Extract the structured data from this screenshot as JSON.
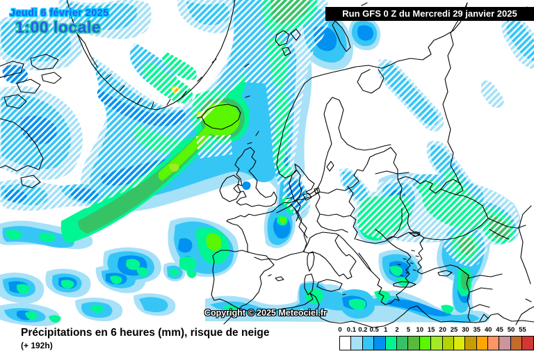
{
  "header": {
    "date": "Jeudi 6 février 2025",
    "time_local": "1:00 locale",
    "run_info": "Run GFS 0 Z du Mercredi 29 janvier 2025"
  },
  "map": {
    "copyright": "Copyright © 2025 Meteociel.fr",
    "region": "Europe / North Atlantic",
    "hatching_meaning": "risque de neige"
  },
  "footer": {
    "caption": "Précipitations en 6 heures (mm), risque de neige",
    "forecast_offset": "(+ 192h)"
  },
  "legend": {
    "unit": "mm",
    "values": [
      "0",
      "0.1",
      "0.2",
      "0.5",
      "1",
      "2",
      "5",
      "10",
      "15",
      "20",
      "25",
      "30",
      "35",
      "40",
      "45",
      "50",
      "55"
    ],
    "colors": [
      "#FFFFFF",
      "#A6E1F7",
      "#36C6F6",
      "#0191F1",
      "#01F693",
      "#36C366",
      "#59B93B",
      "#5BF601",
      "#A2EA23",
      "#B4D306",
      "#DCE90D",
      "#C79B03",
      "#FFA602",
      "#FD9566",
      "#CA959C",
      "#C36B2C",
      "#D23733"
    ]
  },
  "palette": {
    "precip_trace": "#A6E1F7",
    "precip_light": "#36C6F6",
    "precip_moderate": "#0191F1",
    "precip_green1": "#01F693",
    "precip_green2": "#36C366",
    "precip_intense": "#5BF601",
    "precip_yellow_green": "#A2EA23",
    "precip_yellow": "#DDE90D",
    "precip_orange": "#FFA602",
    "date_fill": "#2B59F0",
    "date_outline_top": "#00CCFF",
    "date_outline_bottom": "#2FD3A9",
    "banner_bg": "#000000",
    "banner_text": "#FFFFFF",
    "coastline": "#000000",
    "caption_text": "#000000"
  }
}
